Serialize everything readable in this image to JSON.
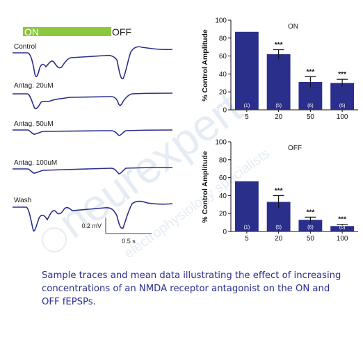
{
  "stimulus_bar": {
    "on_label": "ON",
    "off_label": "OFF",
    "on_color": "#8dc63f"
  },
  "traces": [
    {
      "label": "Control"
    },
    {
      "label": "Antag. 20uM"
    },
    {
      "label": "Antag. 50uM"
    },
    {
      "label": "Antag. 100uM"
    },
    {
      "label": "Wash"
    }
  ],
  "scale_bar": {
    "voltage_label": "0.2 mV",
    "time_label": "0.5 s"
  },
  "watermark": {
    "line1": "neurexpert",
    "line2": "electrophysiology specialists"
  },
  "caption": "Sample traces and mean data illustrating the effect of increasing concentrations of an NMDA receptor antagonist on the ON and OFF fEPSPs.",
  "colors": {
    "trace": "#2b2f8c",
    "bar": "#2b2f8c",
    "caption": "#2a2f8f"
  },
  "chart_data": [
    {
      "type": "bar",
      "title": "ON",
      "ylabel": "% Control Amplitude",
      "ylim": [
        0,
        100
      ],
      "yticks": [
        0,
        20,
        40,
        60,
        80,
        100
      ],
      "categories": [
        "5",
        "20",
        "50",
        "100"
      ],
      "values": [
        87,
        62,
        31,
        30
      ],
      "errors": [
        0,
        5,
        6,
        4
      ],
      "n_labels": [
        "(1)",
        "(5)",
        "(6)",
        "(6)"
      ],
      "significance": [
        "",
        "***",
        "***",
        "***"
      ]
    },
    {
      "type": "bar",
      "title": "OFF",
      "ylabel": "% Control Amplitude",
      "ylim": [
        0,
        100
      ],
      "yticks": [
        0,
        20,
        40,
        60,
        80,
        100
      ],
      "categories": [
        "5",
        "20",
        "50",
        "100"
      ],
      "values": [
        56,
        33,
        13,
        6
      ],
      "errors": [
        0,
        7,
        3,
        2
      ],
      "n_labels": [
        "(1)",
        "(5)",
        "(6)",
        "(6)"
      ],
      "significance": [
        "",
        "***",
        "***",
        "***"
      ]
    }
  ]
}
